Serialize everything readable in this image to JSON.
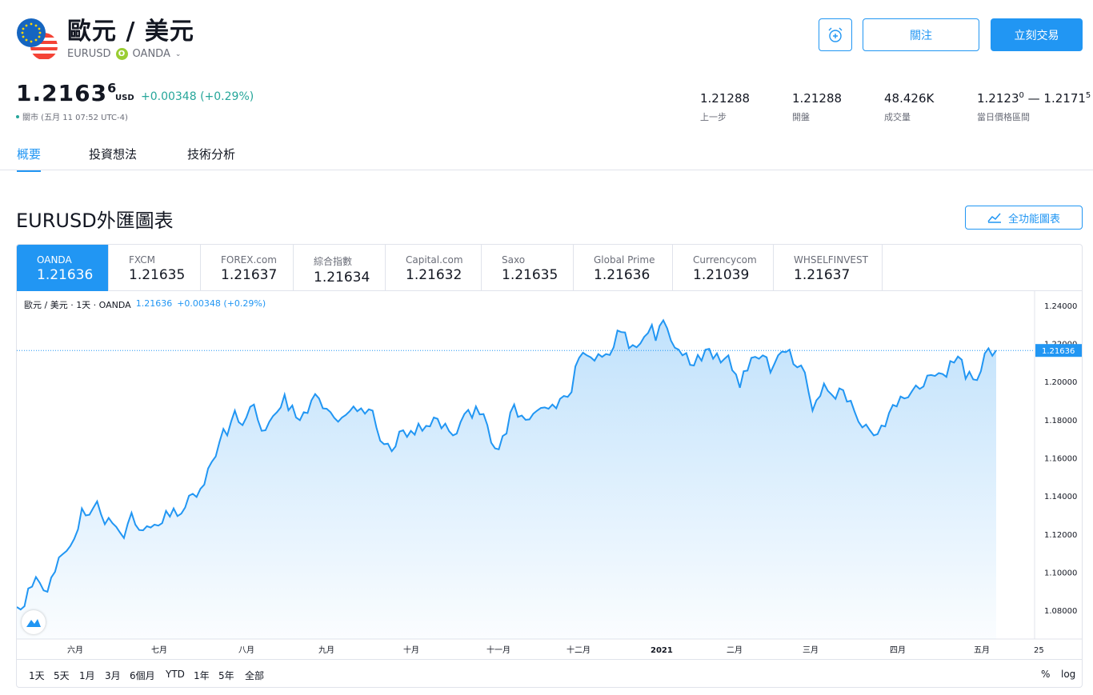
{
  "header": {
    "title": "歐元 / 美元",
    "symbol": "EURUSD",
    "broker": "OANDA",
    "broker_badge": "O",
    "follow_label": "關注",
    "trade_label": "立刻交易"
  },
  "price": {
    "main": "1.2163",
    "sup": "6",
    "currency": "USD",
    "change": "+0.00348 (+0.29%)",
    "status": "關市 (五月 11 07:52 UTC-4)"
  },
  "stats": [
    {
      "value": "1.21288",
      "label": "上一步"
    },
    {
      "value": "1.21288",
      "label": "開盤"
    },
    {
      "value": "48.426K",
      "label": "成交量"
    },
    {
      "value_a": "1.2123",
      "sup_a": "0",
      "sep": " — ",
      "value_b": "1.2171",
      "sup_b": "5",
      "label": "當日價格區間"
    }
  ],
  "tabs": [
    {
      "label": "概要"
    },
    {
      "label": "投資想法"
    },
    {
      "label": "技術分析"
    }
  ],
  "chart_section": {
    "title": "EURUSD外匯圖表",
    "full_chart_label": "全功能圖表"
  },
  "brokers": [
    {
      "name": "OANDA",
      "price": "1.21636"
    },
    {
      "name": "FXCM",
      "price": "1.21635"
    },
    {
      "name": "FOREX.com",
      "price": "1.21637"
    },
    {
      "name": "綜合指數",
      "price": "1.21634"
    },
    {
      "name": "Capital.com",
      "price": "1.21632"
    },
    {
      "name": "Saxo",
      "price": "1.21635"
    },
    {
      "name": "Global Prime",
      "price": "1.21636"
    },
    {
      "name": "Currencycom",
      "price": "1.21039"
    },
    {
      "name": "WHSELFINVEST",
      "price": "1.21637"
    }
  ],
  "legend": {
    "name": "歐元 / 美元 · 1天 · OANDA",
    "value": "1.21636",
    "change": "+0.00348 (+0.29%)"
  },
  "ranges": [
    "1天",
    "5天",
    "1月",
    "3月",
    "6個月",
    "YTD",
    "1年",
    "5年",
    "全部"
  ],
  "options": {
    "percent": "%",
    "log": "log"
  },
  "colors": {
    "accent": "#2196f3",
    "positive": "#26a69a"
  },
  "chart_data": {
    "type": "area",
    "series": [
      {
        "values": [
          1.0818,
          1.0805,
          1.0822,
          1.0915,
          1.0925,
          1.0975,
          1.0945,
          1.0905,
          1.0898,
          1.0972,
          1.1003,
          1.1078,
          1.1095,
          1.1112,
          1.1138,
          1.1175,
          1.1225,
          1.1335,
          1.1298,
          1.1302,
          1.1338,
          1.1372,
          1.1305,
          1.1252,
          1.1285,
          1.1258,
          1.1238,
          1.1208,
          1.118,
          1.1255,
          1.1312,
          1.125,
          1.1222,
          1.122,
          1.1242,
          1.1235,
          1.125,
          1.1245,
          1.1258,
          1.1322,
          1.1292,
          1.1335,
          1.1295,
          1.1308,
          1.134,
          1.1402,
          1.1412,
          1.1395,
          1.1438,
          1.146,
          1.1545,
          1.158,
          1.1608,
          1.1685,
          1.1752,
          1.1718,
          1.179,
          1.1848,
          1.1788,
          1.1772,
          1.1812,
          1.1868,
          1.188,
          1.18,
          1.1742,
          1.1745,
          1.179,
          1.182,
          1.184,
          1.1865,
          1.1932,
          1.185,
          1.1875,
          1.1812,
          1.1798,
          1.184,
          1.1835,
          1.1902,
          1.1935,
          1.1912,
          1.186,
          1.1858,
          1.184,
          1.181,
          1.179,
          1.1812,
          1.1825,
          1.1845,
          1.187,
          1.1845,
          1.186,
          1.1832,
          1.1855,
          1.1848,
          1.176,
          1.169,
          1.1672,
          1.1675,
          1.1635,
          1.166,
          1.1738,
          1.1745,
          1.171,
          1.1742,
          1.1722,
          1.178,
          1.1742,
          1.1768,
          1.1765,
          1.1812,
          1.1805,
          1.1755,
          1.178,
          1.174,
          1.1718,
          1.1728,
          1.1788,
          1.183,
          1.1852,
          1.181,
          1.187,
          1.1828,
          1.183,
          1.1772,
          1.168,
          1.165,
          1.1645,
          1.1715,
          1.1728,
          1.1838,
          1.188,
          1.1815,
          1.1822,
          1.18,
          1.1802,
          1.1832,
          1.1848,
          1.1862,
          1.1865,
          1.1858,
          1.188,
          1.186,
          1.191,
          1.1925,
          1.192,
          1.1945,
          1.208,
          1.2125,
          1.2152,
          1.2138,
          1.2128,
          1.211,
          1.2145,
          1.213,
          1.2145,
          1.214,
          1.218,
          1.2268,
          1.226,
          1.2258,
          1.2175,
          1.2192,
          1.218,
          1.22,
          1.2235,
          1.2255,
          1.2298,
          1.2215,
          1.2292,
          1.2322,
          1.228,
          1.2215,
          1.2178,
          1.2168,
          1.2138,
          1.215,
          1.2088,
          1.2085,
          1.214,
          1.211,
          1.2168,
          1.2172,
          1.212,
          1.2148,
          1.21,
          1.212,
          1.2138,
          1.206,
          1.2038,
          1.1968,
          1.2055,
          1.2058,
          1.2125,
          1.213,
          1.212,
          1.2138,
          1.2128,
          1.2048,
          1.2092,
          1.2138,
          1.2158,
          1.2155,
          1.2168,
          1.2092,
          1.2075,
          1.2085,
          1.2048,
          1.1942,
          1.1848,
          1.1902,
          1.1925,
          1.199,
          1.1952,
          1.1932,
          1.191,
          1.1965,
          1.1955,
          1.1895,
          1.19,
          1.1842,
          1.179,
          1.176,
          1.1775,
          1.1745,
          1.1718,
          1.1725,
          1.177,
          1.1765,
          1.1835,
          1.1878,
          1.187,
          1.1922,
          1.1912,
          1.1918,
          1.195,
          1.198,
          1.1962,
          1.1975,
          1.2032,
          1.2035,
          1.203,
          1.2045,
          1.204,
          1.2025,
          1.2108,
          1.21,
          1.2132,
          1.2115,
          1.2015,
          1.2052,
          1.2012,
          1.2008,
          1.2055,
          1.2148,
          1.2175,
          1.2136,
          1.2164
        ]
      }
    ],
    "ylim": [
      1.065,
      1.2475
    ],
    "y_ticks": [
      "1.24000",
      "1.22000",
      "1.20000",
      "1.18000",
      "1.16000",
      "1.14000",
      "1.12000",
      "1.10000",
      "1.08000"
    ],
    "x_ticks": [
      "六月",
      "七月",
      "八月",
      "九月",
      "十月",
      "十一月",
      "十二月",
      "2021",
      "二月",
      "三月",
      "四月",
      "五月",
      "25"
    ],
    "last_value_label": "1.21636",
    "last_value": 1.21636
  }
}
